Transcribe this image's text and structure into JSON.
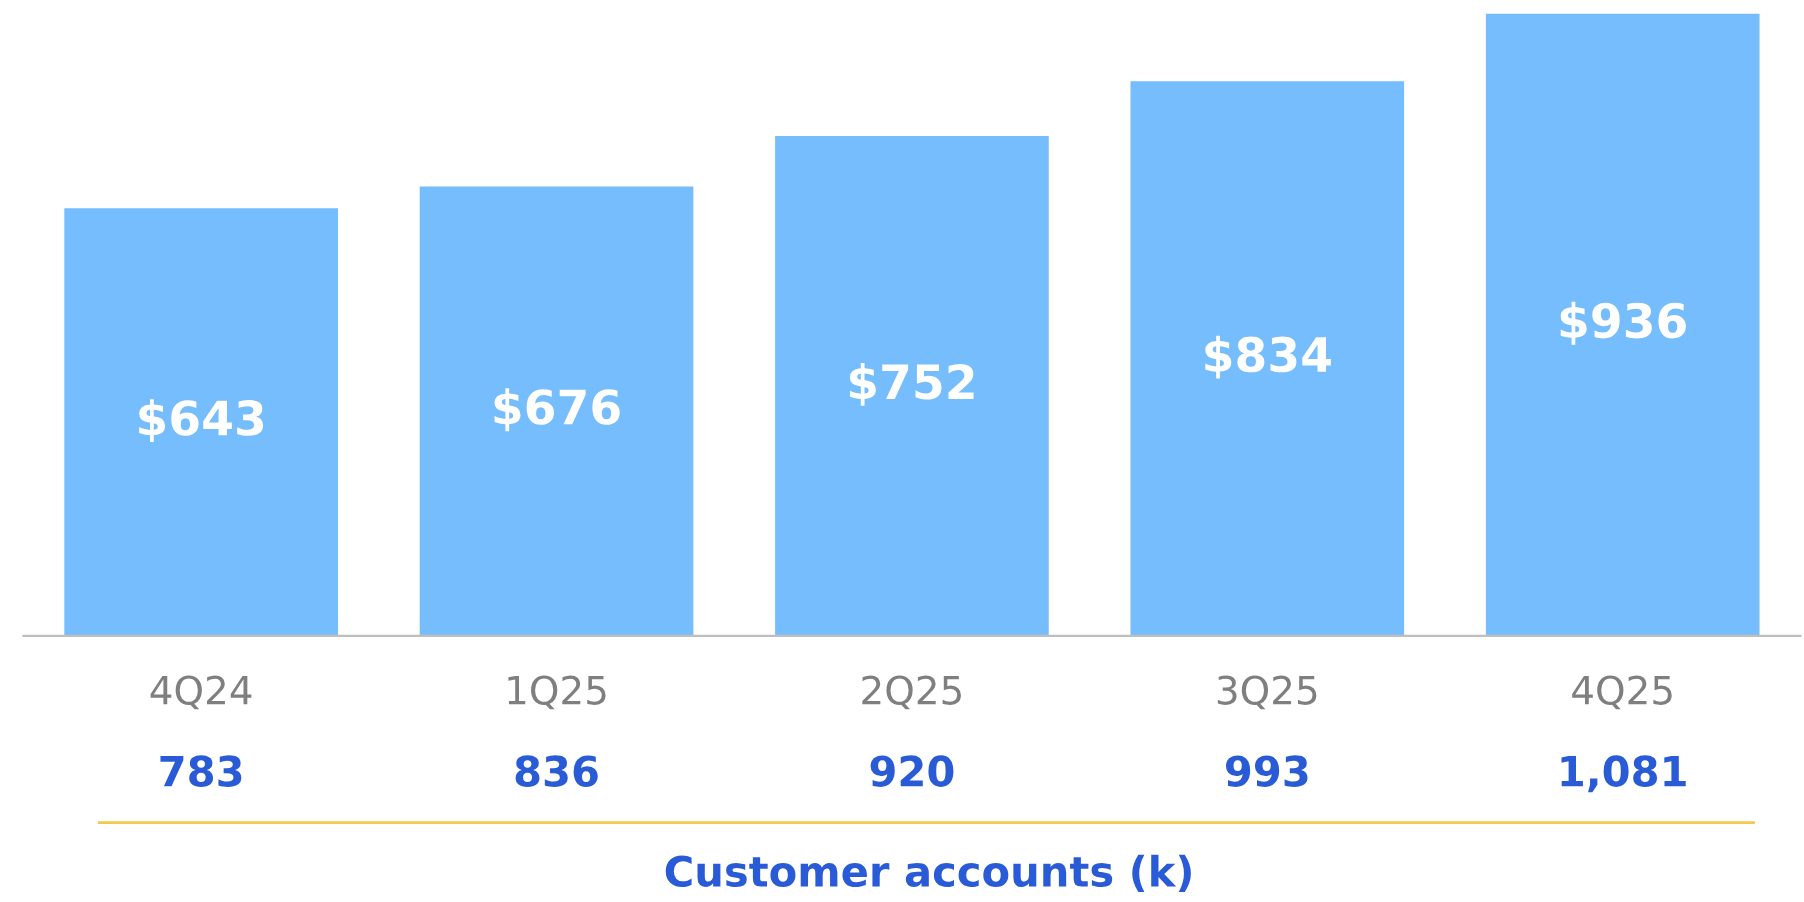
{
  "chart_data": {
    "type": "bar",
    "categories": [
      "4Q24",
      "1Q25",
      "2Q25",
      "3Q25",
      "4Q25"
    ],
    "values": [
      643,
      676,
      752,
      834,
      936
    ],
    "value_labels": [
      "$643",
      "$676",
      "$752",
      "$834",
      "$936"
    ],
    "color": "#75bdfc",
    "xlabel": "Customer accounts (k)",
    "annotations": [
      "783",
      "836",
      "920",
      "993",
      "1,081"
    ],
    "grid": false,
    "legend": false
  }
}
